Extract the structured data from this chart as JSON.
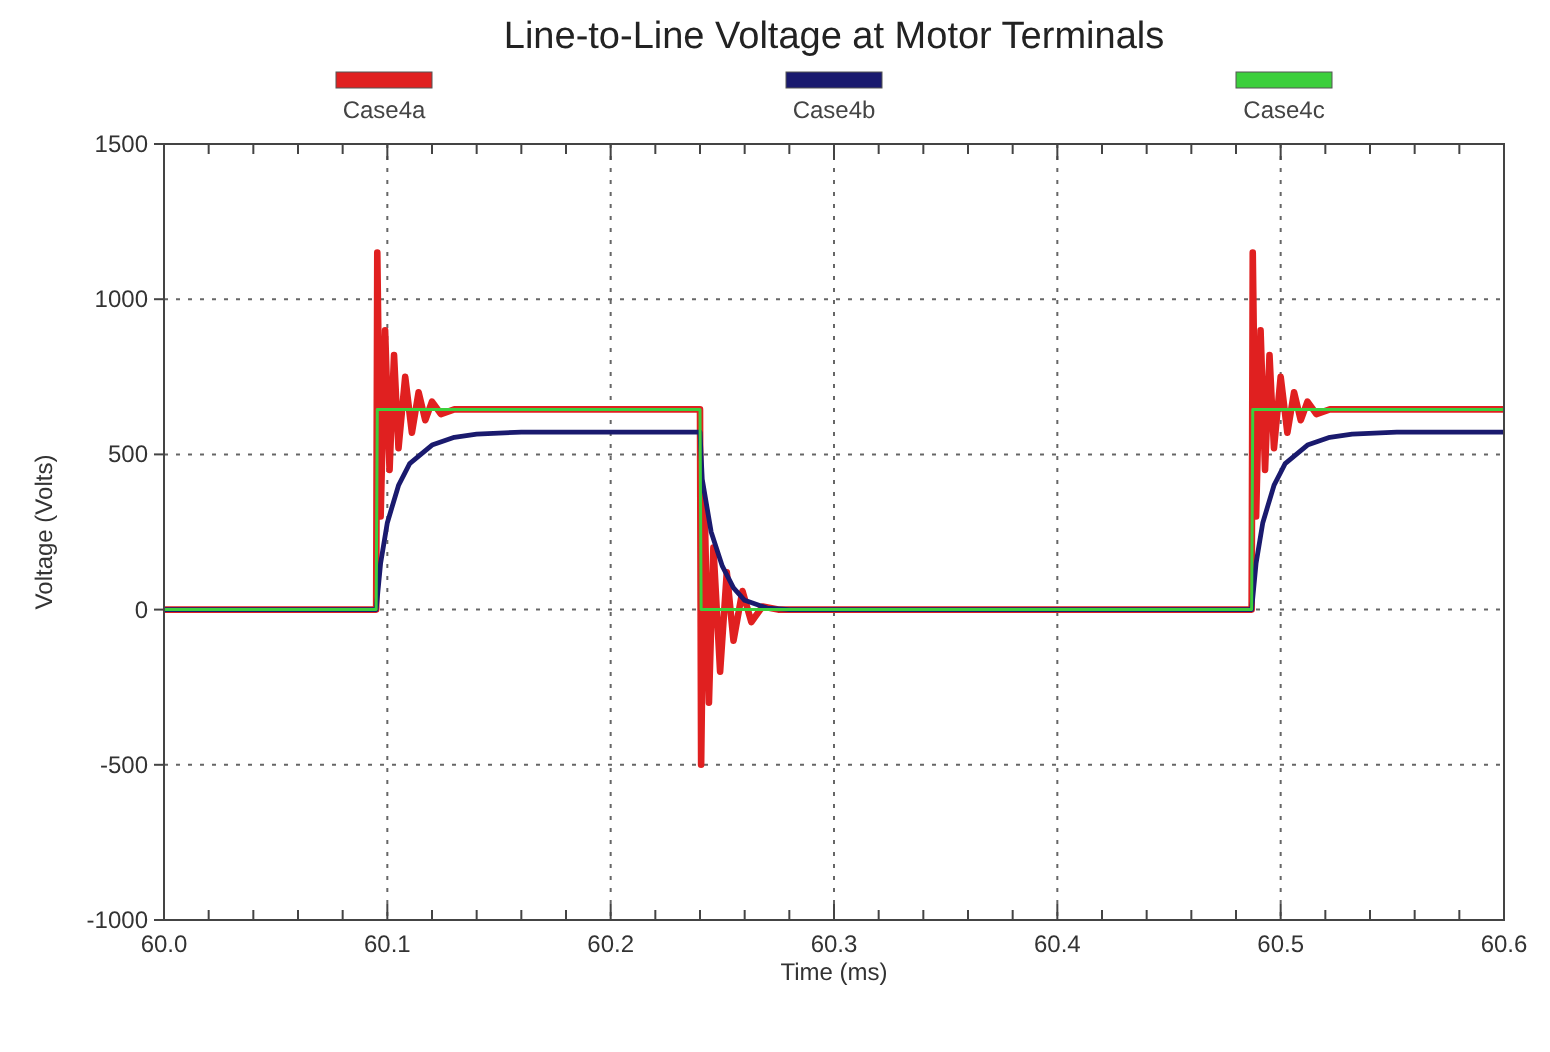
{
  "chart_data": {
    "type": "line",
    "title": "Line-to-Line Voltage at Motor Terminals",
    "xlabel": "Time (ms)",
    "ylabel": "Voltage (Volts)",
    "xlim": [
      60.0,
      60.6
    ],
    "ylim": [
      -1000,
      1500
    ],
    "xticks": [
      {
        "value": 60.0,
        "label": "60.0"
      },
      {
        "value": 60.02,
        "label": null
      },
      {
        "value": 60.04,
        "label": null
      },
      {
        "value": 60.06,
        "label": null
      },
      {
        "value": 60.08,
        "label": null
      },
      {
        "value": 60.1,
        "label": "60.1"
      },
      {
        "value": 60.12,
        "label": null
      },
      {
        "value": 60.14,
        "label": null
      },
      {
        "value": 60.16,
        "label": null
      },
      {
        "value": 60.18,
        "label": null
      },
      {
        "value": 60.2,
        "label": "60.2"
      },
      {
        "value": 60.22,
        "label": null
      },
      {
        "value": 60.24,
        "label": null
      },
      {
        "value": 60.26,
        "label": null
      },
      {
        "value": 60.28,
        "label": null
      },
      {
        "value": 60.3,
        "label": "60.3"
      },
      {
        "value": 60.32,
        "label": null
      },
      {
        "value": 60.34,
        "label": null
      },
      {
        "value": 60.36,
        "label": null
      },
      {
        "value": 60.38,
        "label": null
      },
      {
        "value": 60.4,
        "label": "60.4"
      },
      {
        "value": 60.42,
        "label": null
      },
      {
        "value": 60.44,
        "label": null
      },
      {
        "value": 60.46,
        "label": null
      },
      {
        "value": 60.48,
        "label": null
      },
      {
        "value": 60.5,
        "label": "60.5"
      },
      {
        "value": 60.52,
        "label": null
      },
      {
        "value": 60.54,
        "label": null
      },
      {
        "value": 60.56,
        "label": null
      },
      {
        "value": 60.58,
        "label": null
      },
      {
        "value": 60.6,
        "label": "60.6"
      }
    ],
    "yticks": [
      -1000,
      -500,
      0,
      500,
      1000,
      1500
    ],
    "grid": true,
    "legend": "top",
    "line_style": "solid",
    "marker": "none",
    "series": [
      {
        "name": "Case4a",
        "color": "#e02020",
        "x": [
          60.0,
          60.095,
          60.0955,
          60.097,
          60.099,
          60.101,
          60.103,
          60.105,
          60.108,
          60.111,
          60.114,
          60.117,
          60.12,
          60.124,
          60.13,
          60.24,
          60.2405,
          60.242,
          60.244,
          60.246,
          60.249,
          60.252,
          60.255,
          60.259,
          60.263,
          60.268,
          60.275,
          60.487,
          60.4875,
          60.489,
          60.491,
          60.493,
          60.495,
          60.497,
          60.5,
          60.503,
          60.506,
          60.509,
          60.512,
          60.516,
          60.522,
          60.6
        ],
        "values": [
          0,
          0,
          1150,
          300,
          900,
          450,
          820,
          520,
          750,
          570,
          700,
          610,
          670,
          630,
          645,
          645,
          -500,
          350,
          -300,
          200,
          -200,
          120,
          -100,
          60,
          -40,
          10,
          0,
          0,
          1150,
          300,
          900,
          450,
          820,
          520,
          750,
          570,
          700,
          610,
          670,
          630,
          645,
          645
        ]
      },
      {
        "name": "Case4b",
        "color": "#1a1a6e",
        "x": [
          60.0,
          60.095,
          60.097,
          60.1,
          60.105,
          60.11,
          60.12,
          60.13,
          60.14,
          60.16,
          60.24,
          60.241,
          60.245,
          60.25,
          60.255,
          60.26,
          60.27,
          60.28,
          60.487,
          60.489,
          60.492,
          60.497,
          60.502,
          60.512,
          60.522,
          60.532,
          60.552,
          60.6
        ],
        "values": [
          0,
          0,
          150,
          280,
          400,
          470,
          530,
          555,
          565,
          572,
          572,
          420,
          250,
          140,
          70,
          30,
          5,
          0,
          0,
          150,
          280,
          400,
          470,
          530,
          555,
          565,
          572,
          572
        ]
      },
      {
        "name": "Case4c",
        "color": "#3ccf3c",
        "x": [
          60.0,
          60.095,
          60.0955,
          60.24,
          60.2405,
          60.487,
          60.4875,
          60.6
        ],
        "values": [
          0,
          0,
          645,
          645,
          0,
          0,
          645,
          645
        ]
      }
    ]
  }
}
